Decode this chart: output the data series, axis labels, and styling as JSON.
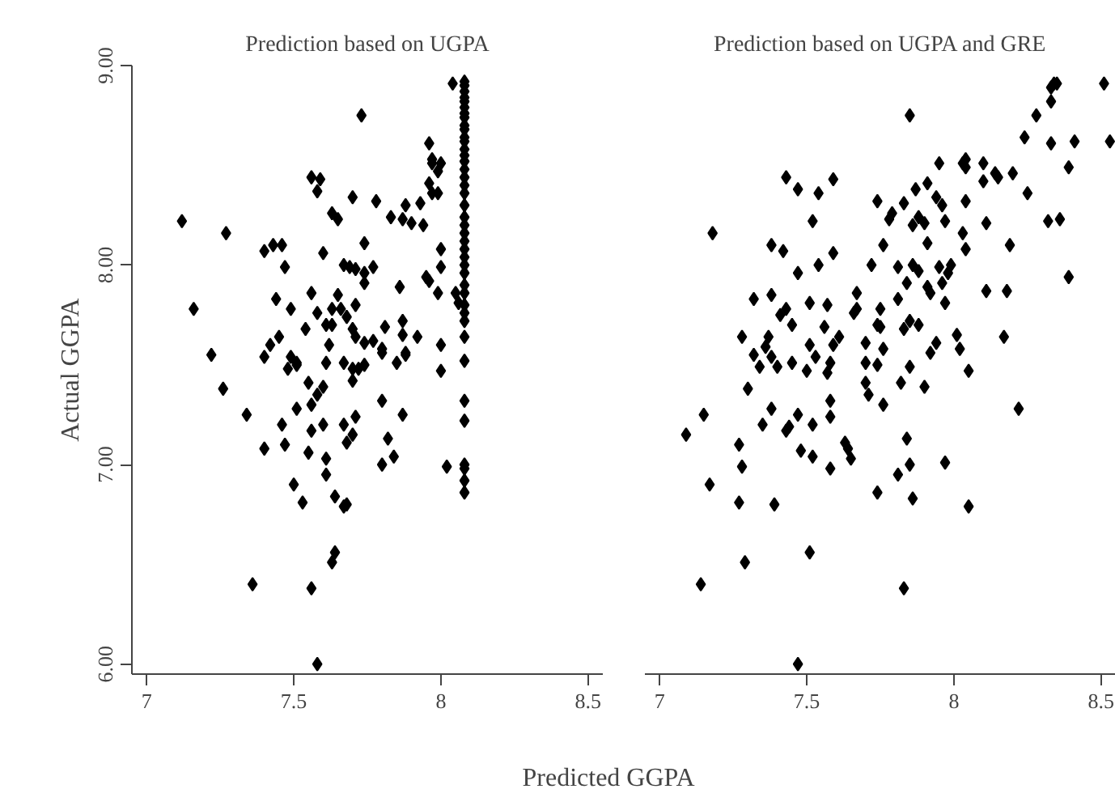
{
  "chart_data": [
    {
      "type": "scatter",
      "title": "Prediction based on UGPA",
      "xlabel": "Predicted GGPA",
      "ylabel": "Actual GGPA",
      "marker": "diamond",
      "color": "#000000",
      "xlim": [
        6.95,
        8.55
      ],
      "ylim": [
        5.95,
        9
      ],
      "xticks": [
        7,
        7.5,
        8,
        8.5
      ],
      "yticks": [
        {
          "value": 6,
          "label": "6.00"
        },
        {
          "value": 7,
          "label": "7.00"
        },
        {
          "value": 8,
          "label": "8.00"
        },
        {
          "value": 9,
          "label": "9.00"
        }
      ],
      "x": [
        8.08,
        8.08,
        8.08,
        8.08,
        8.08,
        8.08,
        8.08,
        8.08,
        8.08,
        8.08,
        8.08,
        8.08,
        8.08,
        8.08,
        8.08,
        8.08,
        8.08,
        8.08,
        8.08,
        8.08,
        8.08,
        8.08,
        8.08,
        8.08,
        8.08,
        8.08,
        8.08,
        8.08,
        8.08,
        8.08,
        8.08,
        8.08,
        8.08,
        8.08,
        8.08,
        8.08,
        8.08,
        8.08,
        8.08,
        8.08,
        8.08,
        8.04,
        7.73,
        7.96,
        7.97,
        7.97,
        8.0,
        7.99,
        7.56,
        7.59,
        7.58,
        7.96,
        7.97,
        7.99,
        7.7,
        7.78,
        7.88,
        7.93,
        7.63,
        7.65,
        7.83,
        7.87,
        7.9,
        7.94,
        7.12,
        7.27,
        7.4,
        7.43,
        7.46,
        7.47,
        7.6,
        7.74,
        8.0,
        7.67,
        7.69,
        7.71,
        7.74,
        7.77,
        7.74,
        8.0,
        7.95,
        7.96,
        7.86,
        7.99,
        8.05,
        8.06,
        7.16,
        7.44,
        7.49,
        7.56,
        7.58,
        7.65,
        7.63,
        7.66,
        7.68,
        7.71,
        7.54,
        7.61,
        7.63,
        7.7,
        7.71,
        7.81,
        7.87,
        7.87,
        7.92,
        7.45,
        7.42,
        7.4,
        7.22,
        7.62,
        7.74,
        7.77,
        7.8,
        7.88,
        8.0,
        7.49,
        7.51,
        7.67,
        7.61,
        7.48,
        7.51,
        7.7,
        7.72,
        7.74,
        7.8,
        7.85,
        7.88,
        8.0,
        7.26,
        7.55,
        7.58,
        7.6,
        7.7,
        7.34,
        7.51,
        7.56,
        7.8,
        7.87,
        7.46,
        7.47,
        7.4,
        7.56,
        7.6,
        7.67,
        7.71,
        7.68,
        7.7,
        7.82,
        7.84,
        7.8,
        7.55,
        7.61,
        7.61,
        8.02,
        7.5,
        7.53,
        7.64,
        7.67,
        7.68,
        7.64,
        7.63,
        7.36,
        7.56,
        7.58
      ],
      "values": [
        8.92,
        8.9,
        8.87,
        8.84,
        8.82,
        8.79,
        8.76,
        8.74,
        8.7,
        8.68,
        8.64,
        8.62,
        8.58,
        8.55,
        8.52,
        8.48,
        8.44,
        8.4,
        8.36,
        8.3,
        8.24,
        8.2,
        8.16,
        8.12,
        8.08,
        8.04,
        8.0,
        7.96,
        7.9,
        7.86,
        7.8,
        7.76,
        7.72,
        7.64,
        7.52,
        7.32,
        7.22,
        7.0,
        6.98,
        6.92,
        6.86,
        8.91,
        8.75,
        8.61,
        8.53,
        8.51,
        8.51,
        8.47,
        8.44,
        8.43,
        8.37,
        8.41,
        8.36,
        8.36,
        8.34,
        8.32,
        8.3,
        8.31,
        8.26,
        8.23,
        8.24,
        8.23,
        8.21,
        8.2,
        8.22,
        8.16,
        8.07,
        8.1,
        8.1,
        7.99,
        8.06,
        8.11,
        8.08,
        8.0,
        7.99,
        7.98,
        7.96,
        7.99,
        7.91,
        7.99,
        7.94,
        7.92,
        7.89,
        7.86,
        7.86,
        7.81,
        7.78,
        7.83,
        7.78,
        7.86,
        7.76,
        7.85,
        7.78,
        7.78,
        7.74,
        7.8,
        7.68,
        7.7,
        7.7,
        7.68,
        7.64,
        7.69,
        7.72,
        7.65,
        7.64,
        7.64,
        7.6,
        7.54,
        7.55,
        7.6,
        7.61,
        7.62,
        7.58,
        7.56,
        7.6,
        7.54,
        7.51,
        7.51,
        7.51,
        7.48,
        7.5,
        7.48,
        7.48,
        7.5,
        7.56,
        7.51,
        7.55,
        7.47,
        7.38,
        7.41,
        7.35,
        7.39,
        7.42,
        7.25,
        7.28,
        7.3,
        7.32,
        7.25,
        7.2,
        7.1,
        7.08,
        7.17,
        7.2,
        7.2,
        7.24,
        7.11,
        7.15,
        7.13,
        7.04,
        7.0,
        7.06,
        7.03,
        6.95,
        6.99,
        6.9,
        6.81,
        6.84,
        6.79,
        6.8,
        6.56,
        6.51,
        6.4,
        6.38,
        6.0
      ]
    },
    {
      "type": "scatter",
      "title": "Prediction based on UGPA and GRE",
      "marker": "diamond",
      "color": "#000000",
      "tick_labels": "x",
      "xlim": [
        6.95,
        8.55
      ],
      "ylim": [
        5.95,
        9
      ],
      "xticks": [
        7,
        7.5,
        8,
        8.5
      ],
      "x": [
        8.34,
        8.35,
        8.33,
        8.51,
        8.33,
        7.85,
        8.28,
        8.24,
        8.33,
        8.41,
        8.53,
        8.39,
        7.95,
        8.03,
        8.04,
        8.04,
        8.1,
        8.14,
        8.15,
        8.2,
        8.1,
        8.25,
        7.43,
        7.47,
        7.54,
        7.59,
        7.87,
        7.91,
        7.94,
        7.96,
        7.74,
        7.83,
        7.79,
        7.78,
        7.86,
        7.88,
        7.9,
        7.97,
        8.04,
        8.11,
        8.32,
        8.36,
        7.52,
        7.18,
        7.38,
        7.42,
        7.54,
        7.59,
        7.76,
        7.91,
        8.03,
        8.04,
        8.19,
        8.39,
        7.47,
        7.72,
        7.81,
        7.86,
        7.88,
        7.84,
        7.95,
        7.99,
        7.98,
        7.96,
        7.91,
        7.92,
        7.81,
        7.97,
        8.11,
        8.18,
        7.32,
        7.38,
        7.43,
        7.41,
        7.45,
        7.51,
        7.57,
        7.67,
        7.67,
        7.66,
        7.75,
        7.56,
        7.61,
        7.59,
        7.51,
        7.74,
        7.75,
        7.83,
        7.85,
        7.88,
        7.7,
        7.76,
        7.94,
        7.92,
        8.01,
        8.02,
        8.17,
        7.28,
        7.37,
        7.36,
        7.32,
        7.38,
        7.34,
        7.4,
        7.45,
        7.53,
        7.58,
        7.7,
        7.74,
        7.85,
        7.5,
        7.57,
        8.05,
        7.3,
        7.7,
        7.71,
        7.82,
        7.9,
        7.76,
        8.22,
        7.15,
        7.09,
        7.38,
        7.35,
        7.43,
        7.44,
        7.47,
        7.52,
        7.58,
        7.58,
        7.27,
        7.28,
        7.17,
        7.27,
        7.39,
        7.48,
        7.52,
        7.58,
        7.63,
        7.64,
        7.65,
        7.84,
        7.85,
        7.81,
        7.74,
        7.86,
        7.97,
        8.05,
        7.51,
        7.29,
        7.14,
        7.83,
        7.47
      ],
      "values": [
        8.91,
        8.91,
        8.89,
        8.91,
        8.82,
        8.75,
        8.75,
        8.64,
        8.61,
        8.62,
        8.62,
        8.49,
        8.51,
        8.51,
        8.53,
        8.49,
        8.51,
        8.46,
        8.44,
        8.46,
        8.42,
        8.36,
        8.44,
        8.38,
        8.36,
        8.43,
        8.38,
        8.41,
        8.34,
        8.3,
        8.32,
        8.31,
        8.26,
        8.23,
        8.2,
        8.24,
        8.21,
        8.22,
        8.32,
        8.21,
        8.22,
        8.23,
        8.22,
        8.16,
        8.1,
        8.07,
        8.0,
        8.06,
        8.1,
        8.11,
        8.16,
        8.08,
        8.1,
        7.94,
        7.96,
        8.0,
        7.99,
        8.0,
        7.97,
        7.91,
        7.99,
        8.0,
        7.96,
        7.91,
        7.89,
        7.86,
        7.83,
        7.81,
        7.87,
        7.87,
        7.83,
        7.85,
        7.78,
        7.75,
        7.7,
        7.81,
        7.8,
        7.86,
        7.78,
        7.76,
        7.78,
        7.69,
        7.64,
        7.6,
        7.6,
        7.7,
        7.69,
        7.68,
        7.72,
        7.7,
        7.61,
        7.58,
        7.61,
        7.56,
        7.65,
        7.58,
        7.64,
        7.64,
        7.64,
        7.59,
        7.55,
        7.54,
        7.49,
        7.49,
        7.51,
        7.54,
        7.51,
        7.51,
        7.5,
        7.49,
        7.47,
        7.46,
        7.47,
        7.38,
        7.41,
        7.35,
        7.41,
        7.39,
        7.3,
        7.28,
        7.25,
        7.15,
        7.28,
        7.2,
        7.17,
        7.19,
        7.25,
        7.2,
        7.32,
        7.24,
        7.1,
        6.99,
        6.9,
        6.81,
        6.8,
        7.07,
        7.04,
        6.98,
        7.11,
        7.08,
        7.03,
        7.13,
        7.0,
        6.95,
        6.86,
        6.83,
        7.01,
        6.79,
        6.56,
        6.51,
        6.4,
        6.38,
        6.0
      ]
    }
  ]
}
